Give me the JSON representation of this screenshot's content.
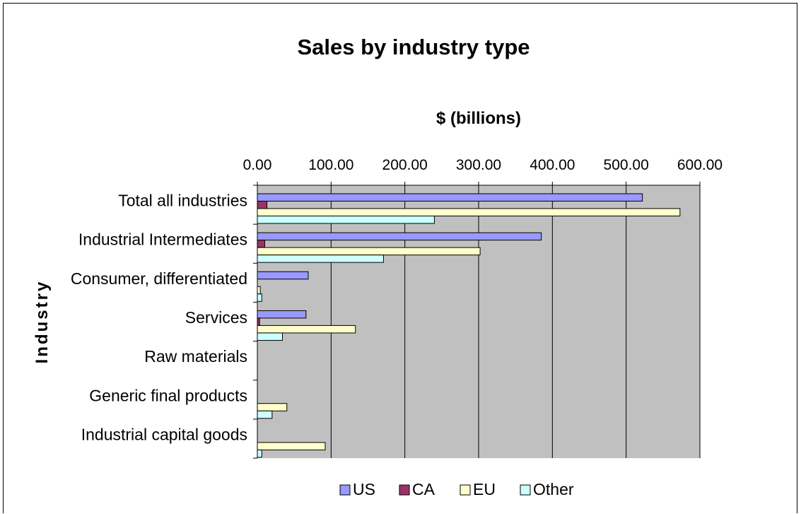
{
  "chart_data": {
    "type": "bar",
    "orientation": "horizontal",
    "title": "Sales by industry type",
    "xlabel": "$ (billions)",
    "ylabel": "Industry",
    "xlim": [
      0,
      600
    ],
    "x_ticks": [
      "0.00",
      "100.00",
      "200.00",
      "300.00",
      "400.00",
      "500.00",
      "600.00"
    ],
    "x_axis_position": "top",
    "grid": true,
    "plot_background": "#c0c0c0",
    "legend_position": "bottom",
    "categories": [
      "Total all industries",
      "Industrial Intermediates",
      "Consumer, differentiated",
      "Services",
      "Raw materials",
      "Generic final products",
      "Industrial capital goods"
    ],
    "series": [
      {
        "name": "US",
        "color": "#9999ff",
        "values": [
          522,
          385,
          69,
          66,
          0,
          0,
          0
        ]
      },
      {
        "name": "CA",
        "color": "#993366",
        "values": [
          13,
          10,
          0,
          3,
          0,
          0,
          0
        ]
      },
      {
        "name": "EU",
        "color": "#ffffcc",
        "values": [
          573,
          302,
          4,
          133,
          0,
          40,
          92
        ]
      },
      {
        "name": "Other",
        "color": "#ccffff",
        "values": [
          240,
          171,
          6,
          34,
          0,
          20,
          6
        ]
      }
    ]
  }
}
